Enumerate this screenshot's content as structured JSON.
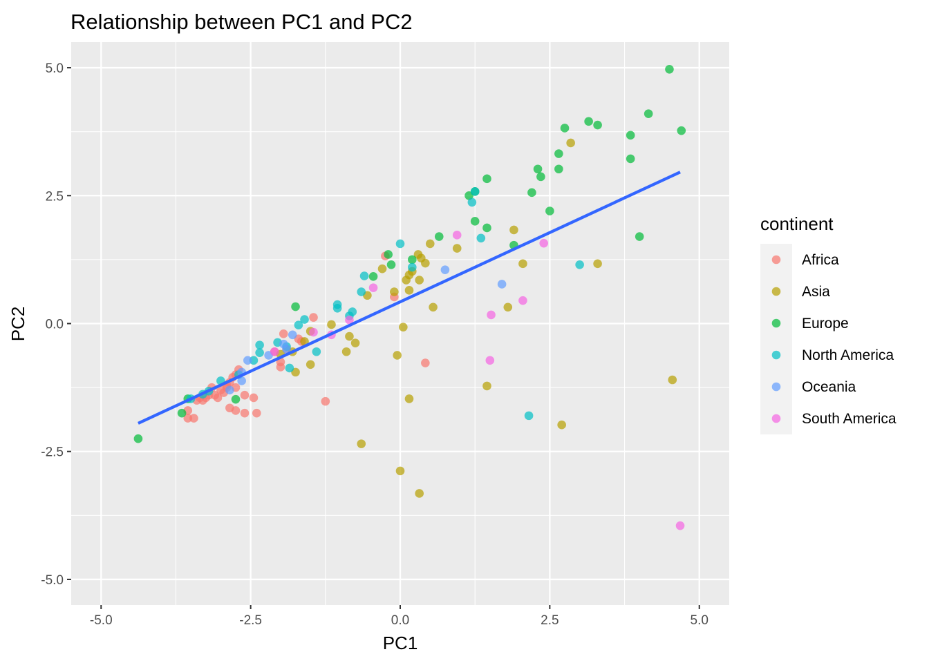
{
  "chart_data": {
    "type": "scatter",
    "title": "Relationship between PC1 and PC2",
    "xlabel": "PC1",
    "ylabel": "PC2",
    "xlim": [
      -5.5,
      5.5
    ],
    "ylim": [
      -5.5,
      5.5
    ],
    "x_ticks": [
      -5.0,
      -2.5,
      0.0,
      2.5,
      5.0
    ],
    "y_ticks": [
      -5.0,
      -2.5,
      0.0,
      2.5,
      5.0
    ],
    "x_tick_labels": [
      "-5.0",
      "-2.5",
      "0.0",
      "2.5",
      "5.0"
    ],
    "y_tick_labels": [
      "-5.0",
      "-2.5",
      "0.0",
      "2.5",
      "5.0"
    ],
    "grid": true,
    "legend": {
      "title": "continent",
      "placement": "right"
    },
    "trend_line": {
      "type": "linear",
      "color": "#3366FF",
      "x": [
        -4.38,
        4.68
      ],
      "y": [
        -1.95,
        2.96
      ]
    },
    "series": [
      {
        "name": "Africa",
        "color": "#F8766D",
        "points": [
          [
            -0.25,
            1.32
          ],
          [
            -0.1,
            0.52
          ],
          [
            -1.45,
            0.12
          ],
          [
            -1.7,
            -0.3
          ],
          [
            -1.65,
            -0.35
          ],
          [
            -1.9,
            -0.5
          ],
          [
            -1.95,
            -0.2
          ],
          [
            -2.0,
            -0.75
          ],
          [
            -2.0,
            -0.85
          ],
          [
            -2.1,
            -0.55
          ],
          [
            -2.7,
            -0.9
          ],
          [
            -2.75,
            -1.0
          ],
          [
            -2.75,
            -1.25
          ],
          [
            -2.8,
            -1.05
          ],
          [
            -2.85,
            -1.15
          ],
          [
            -2.9,
            -1.25
          ],
          [
            -2.95,
            -1.35
          ],
          [
            -3.0,
            -1.3
          ],
          [
            -3.05,
            -1.45
          ],
          [
            -3.1,
            -1.4
          ],
          [
            -3.15,
            -1.25
          ],
          [
            -3.2,
            -1.4
          ],
          [
            -3.25,
            -1.45
          ],
          [
            -3.3,
            -1.5
          ],
          [
            -3.35,
            -1.45
          ],
          [
            -3.4,
            -1.5
          ],
          [
            -3.45,
            -1.85
          ],
          [
            -3.55,
            -1.85
          ],
          [
            -3.55,
            -1.7
          ],
          [
            -2.85,
            -1.65
          ],
          [
            -2.75,
            -1.7
          ],
          [
            -2.6,
            -1.75
          ],
          [
            -2.4,
            -1.75
          ],
          [
            -2.6,
            -1.4
          ],
          [
            -2.45,
            -1.45
          ],
          [
            -1.25,
            -1.52
          ],
          [
            0.42,
            -0.77
          ],
          [
            -2.9,
            -1.2
          ]
        ]
      },
      {
        "name": "Asia",
        "color": "#B79F00",
        "points": [
          [
            -0.3,
            1.07
          ],
          [
            0.1,
            0.85
          ],
          [
            0.15,
            0.95
          ],
          [
            0.2,
            1.02
          ],
          [
            0.3,
            1.35
          ],
          [
            0.35,
            1.28
          ],
          [
            0.42,
            1.18
          ],
          [
            0.5,
            1.56
          ],
          [
            0.95,
            1.47
          ],
          [
            0.32,
            0.85
          ],
          [
            -0.1,
            0.62
          ],
          [
            0.15,
            0.65
          ],
          [
            -0.55,
            0.55
          ],
          [
            0.55,
            0.32
          ],
          [
            0.05,
            -0.07
          ],
          [
            -1.15,
            -0.02
          ],
          [
            -0.85,
            -0.25
          ],
          [
            -0.75,
            -0.38
          ],
          [
            -0.9,
            -0.55
          ],
          [
            -1.5,
            -0.8
          ],
          [
            -1.75,
            -0.95
          ],
          [
            -1.8,
            -0.55
          ],
          [
            -1.6,
            -0.35
          ],
          [
            -1.5,
            -0.15
          ],
          [
            -2.0,
            -0.6
          ],
          [
            -0.05,
            -0.62
          ],
          [
            0.15,
            -1.47
          ],
          [
            -0.65,
            -2.35
          ],
          [
            0.0,
            -2.88
          ],
          [
            0.32,
            -3.32
          ],
          [
            1.45,
            -1.22
          ],
          [
            1.8,
            0.32
          ],
          [
            1.9,
            1.83
          ],
          [
            2.05,
            1.17
          ],
          [
            2.85,
            3.53
          ],
          [
            3.3,
            1.17
          ],
          [
            4.55,
            -1.1
          ],
          [
            2.7,
            -1.98
          ]
        ]
      },
      {
        "name": "Europe",
        "color": "#00BA38",
        "points": [
          [
            4.5,
            4.97
          ],
          [
            4.15,
            4.1
          ],
          [
            3.15,
            3.95
          ],
          [
            3.3,
            3.88
          ],
          [
            2.75,
            3.82
          ],
          [
            3.85,
            3.68
          ],
          [
            4.7,
            3.77
          ],
          [
            2.65,
            3.32
          ],
          [
            2.3,
            3.02
          ],
          [
            2.65,
            3.02
          ],
          [
            2.35,
            2.87
          ],
          [
            1.45,
            2.83
          ],
          [
            2.2,
            2.56
          ],
          [
            1.25,
            2.58
          ],
          [
            1.15,
            2.5
          ],
          [
            2.5,
            2.2
          ],
          [
            3.85,
            3.22
          ],
          [
            1.25,
            2.0
          ],
          [
            1.45,
            1.87
          ],
          [
            0.65,
            1.7
          ],
          [
            1.9,
            1.53
          ],
          [
            4.0,
            1.7
          ],
          [
            -0.2,
            1.35
          ],
          [
            -0.15,
            1.15
          ],
          [
            0.2,
            1.25
          ],
          [
            -0.45,
            0.92
          ],
          [
            -1.75,
            0.33
          ],
          [
            -2.75,
            -1.48
          ],
          [
            -3.55,
            -1.47
          ],
          [
            -3.65,
            -1.75
          ],
          [
            -4.38,
            -2.25
          ]
        ]
      },
      {
        "name": "North America",
        "color": "#00BFC4",
        "points": [
          [
            1.25,
            2.58
          ],
          [
            1.2,
            2.37
          ],
          [
            1.35,
            1.67
          ],
          [
            0.0,
            1.56
          ],
          [
            0.2,
            1.1
          ],
          [
            -0.6,
            0.93
          ],
          [
            -0.65,
            0.62
          ],
          [
            -1.05,
            0.37
          ],
          [
            -1.05,
            0.3
          ],
          [
            -0.8,
            0.23
          ],
          [
            -0.85,
            0.15
          ],
          [
            -1.6,
            0.08
          ],
          [
            -1.7,
            -0.03
          ],
          [
            -1.4,
            -0.55
          ],
          [
            -2.35,
            -0.42
          ],
          [
            -2.35,
            -0.57
          ],
          [
            -2.45,
            -0.72
          ],
          [
            -2.05,
            -0.37
          ],
          [
            -1.85,
            -0.87
          ],
          [
            -1.9,
            -0.45
          ],
          [
            -2.7,
            -1.0
          ],
          [
            -3.0,
            -1.12
          ],
          [
            -3.2,
            -1.32
          ],
          [
            -3.3,
            -1.38
          ],
          [
            -3.5,
            -1.47
          ],
          [
            3.0,
            1.15
          ],
          [
            2.15,
            -1.8
          ]
        ]
      },
      {
        "name": "Oceania",
        "color": "#619CFF",
        "points": [
          [
            0.75,
            1.05
          ],
          [
            1.7,
            0.77
          ],
          [
            -1.8,
            -0.22
          ],
          [
            -1.95,
            -0.4
          ],
          [
            -1.9,
            -0.5
          ],
          [
            -2.55,
            -0.72
          ],
          [
            -2.65,
            -0.95
          ],
          [
            -2.65,
            -1.12
          ],
          [
            -2.2,
            -0.62
          ],
          [
            -2.85,
            -1.3
          ]
        ]
      },
      {
        "name": "South America",
        "color": "#F564E3",
        "points": [
          [
            0.95,
            1.73
          ],
          [
            2.4,
            1.57
          ],
          [
            -0.45,
            0.7
          ],
          [
            -0.85,
            0.07
          ],
          [
            -1.15,
            -0.22
          ],
          [
            -1.45,
            -0.17
          ],
          [
            1.52,
            0.17
          ],
          [
            2.05,
            0.45
          ],
          [
            1.5,
            -0.72
          ],
          [
            -2.1,
            -0.55
          ],
          [
            4.68,
            -3.95
          ]
        ]
      }
    ]
  }
}
